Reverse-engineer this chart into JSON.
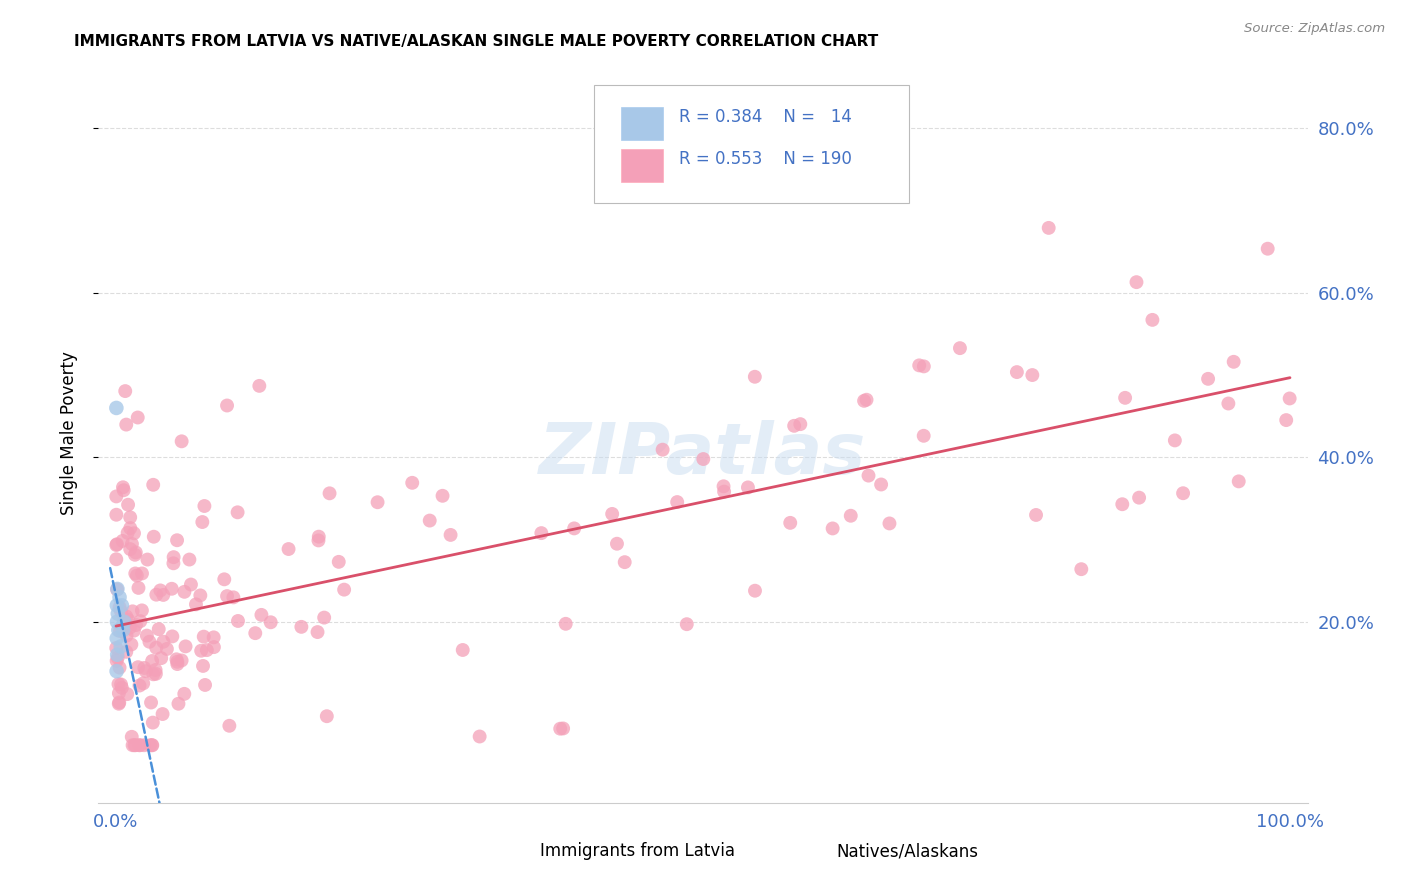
{
  "title": "IMMIGRANTS FROM LATVIA VS NATIVE/ALASKAN SINGLE MALE POVERTY CORRELATION CHART",
  "source": "Source: ZipAtlas.com",
  "ylabel": "Single Male Poverty",
  "R1": "0.384",
  "N1": "14",
  "R2": "0.553",
  "N2": "190",
  "color_blue": "#A8C8E8",
  "color_pink": "#F4A0B8",
  "trendline_blue": "#4A90D9",
  "trendline_pink": "#D9506A",
  "legend_label1": "Immigrants from Latvia",
  "legend_label2": "Natives/Alaskans",
  "blue_color_text": "#4472C4",
  "ytick_color": "#4472C4",
  "xtick_color": "#4472C4",
  "blue_x": [
    0.0003,
    0.0005,
    0.0006,
    0.0007,
    0.0008,
    0.001,
    0.0012,
    0.0015,
    0.002,
    0.003,
    0.004,
    0.005,
    0.006,
    0.007
  ],
  "blue_y": [
    0.46,
    0.14,
    0.18,
    0.22,
    0.2,
    0.16,
    0.24,
    0.21,
    0.19,
    0.23,
    0.17,
    0.22,
    0.19,
    0.2
  ],
  "pink_seed": 42,
  "pink_n": 190,
  "watermark": "ZIPatlas",
  "watermark_color": "#C8DCF0",
  "grid_color": "#DDDDDD",
  "spine_color": "#CCCCCC"
}
